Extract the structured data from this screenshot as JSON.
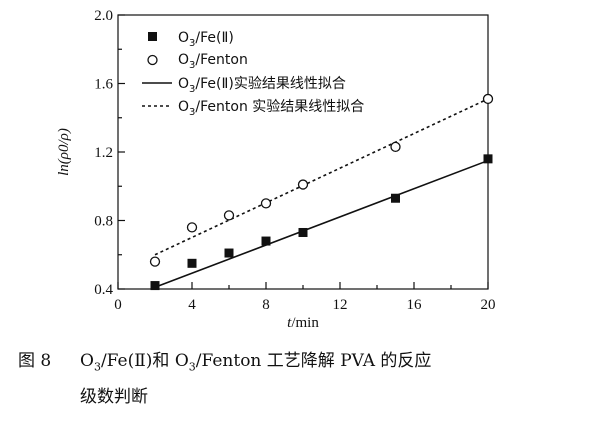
{
  "chart_data": {
    "type": "scatter",
    "xlabel_italic": "t",
    "xlabel_rest": "/min",
    "ylabel": "ln(ρ0/ρ)",
    "xlim": [
      0,
      20
    ],
    "ylim": [
      0.4,
      2.0
    ],
    "x_ticks": [
      "0",
      "4",
      "8",
      "12",
      "16",
      "20"
    ],
    "y_ticks": [
      "0.4",
      "0.8",
      "1.2",
      "1.6",
      "2.0"
    ],
    "x_tick_values": [
      0,
      4,
      8,
      12,
      16,
      20
    ],
    "y_tick_values": [
      0.4,
      0.8,
      1.2,
      1.6,
      2.0
    ],
    "grid": false,
    "legend_position": "top-left",
    "series": [
      {
        "name": "O3/Fe(Ⅱ)",
        "marker": "filled-square",
        "color": "#111111",
        "x": [
          2,
          4,
          6,
          8,
          10,
          15,
          20
        ],
        "y": [
          0.42,
          0.55,
          0.61,
          0.68,
          0.73,
          0.93,
          1.16
        ]
      },
      {
        "name": "O3/Fenton",
        "marker": "open-circle",
        "color": "#111111",
        "x": [
          2,
          4,
          6,
          8,
          10,
          15,
          20
        ],
        "y": [
          0.56,
          0.76,
          0.83,
          0.9,
          1.01,
          1.23,
          1.51
        ]
      },
      {
        "name": "O3/Fe(Ⅱ)实验结果线性拟合",
        "style": "solid-line",
        "color": "#111111",
        "x": [
          2,
          20
        ],
        "y": [
          0.41,
          1.15
        ]
      },
      {
        "name": "O3/Fenton 实验结果线性拟合",
        "style": "dotted-line",
        "color": "#111111",
        "x": [
          2,
          20
        ],
        "y": [
          0.6,
          1.51
        ]
      }
    ]
  },
  "legend": {
    "items": [
      {
        "prefix": "O",
        "sub": "3",
        "suffix": "/Fe(Ⅱ)"
      },
      {
        "prefix": "O",
        "sub": "3",
        "suffix": "/Fenton"
      },
      {
        "prefix": "O",
        "sub": "3",
        "suffix": "/Fe(Ⅱ)实验结果线性拟合"
      },
      {
        "prefix": "O",
        "sub": "3",
        "suffix": "/Fenton 实验结果线性拟合"
      }
    ]
  },
  "caption": {
    "figure_number": "图 8",
    "line1_part1": "O",
    "line1_sub1": "3",
    "line1_part2": "/Fe(Ⅱ)和 O",
    "line1_sub2": "3",
    "line1_part3": "/Fenton 工艺降解 PVA 的反应",
    "line2": "级数判断"
  }
}
